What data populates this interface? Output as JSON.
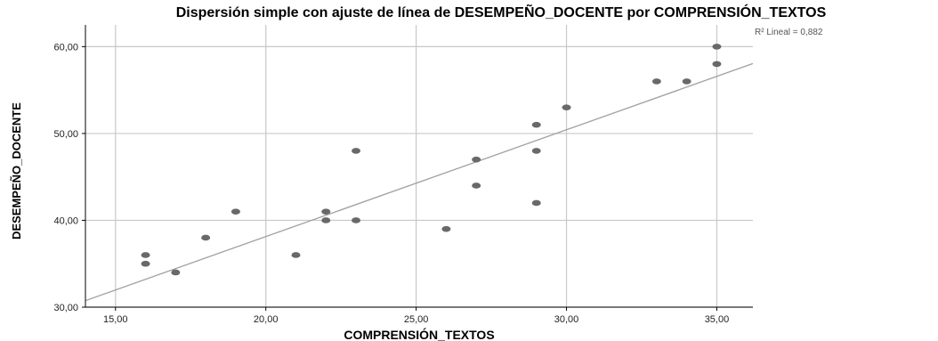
{
  "chart_data": {
    "type": "scatter",
    "title": "Dispersión simple con ajuste de línea de DESEMPEÑO_DOCENTE por COMPRENSIÓN_TEXTOS",
    "xlabel": "COMPRENSIÓN_TEXTOS",
    "ylabel": "DESEMPEÑO_DOCENTE",
    "xlim": [
      14,
      36.2
    ],
    "ylim": [
      30,
      62.5
    ],
    "x_ticks": [
      15,
      20,
      25,
      30,
      35
    ],
    "y_ticks": [
      30,
      40,
      50,
      60
    ],
    "x_tick_labels": [
      "15,00",
      "20,00",
      "25,00",
      "30,00",
      "35,00"
    ],
    "y_tick_labels": [
      "30,00",
      "40,00",
      "50,00",
      "60,00"
    ],
    "grid": true,
    "annotation": "R² Lineal = 0,882",
    "point_color": "#696969",
    "fit_line_color": "#a0a0a0",
    "points": [
      {
        "x": 16,
        "y": 36
      },
      {
        "x": 16,
        "y": 35
      },
      {
        "x": 17,
        "y": 34
      },
      {
        "x": 18,
        "y": 38
      },
      {
        "x": 19,
        "y": 41
      },
      {
        "x": 21,
        "y": 36
      },
      {
        "x": 22,
        "y": 41
      },
      {
        "x": 22,
        "y": 40
      },
      {
        "x": 23,
        "y": 48
      },
      {
        "x": 23,
        "y": 40
      },
      {
        "x": 26,
        "y": 39
      },
      {
        "x": 27,
        "y": 47
      },
      {
        "x": 27,
        "y": 44
      },
      {
        "x": 29,
        "y": 51
      },
      {
        "x": 29,
        "y": 48
      },
      {
        "x": 29,
        "y": 42
      },
      {
        "x": 30,
        "y": 53
      },
      {
        "x": 33,
        "y": 56
      },
      {
        "x": 34,
        "y": 56
      },
      {
        "x": 35,
        "y": 60
      },
      {
        "x": 35,
        "y": 58
      }
    ],
    "fit_line": {
      "x": [
        14,
        36.2
      ],
      "y": [
        30.75,
        58.05
      ]
    }
  }
}
